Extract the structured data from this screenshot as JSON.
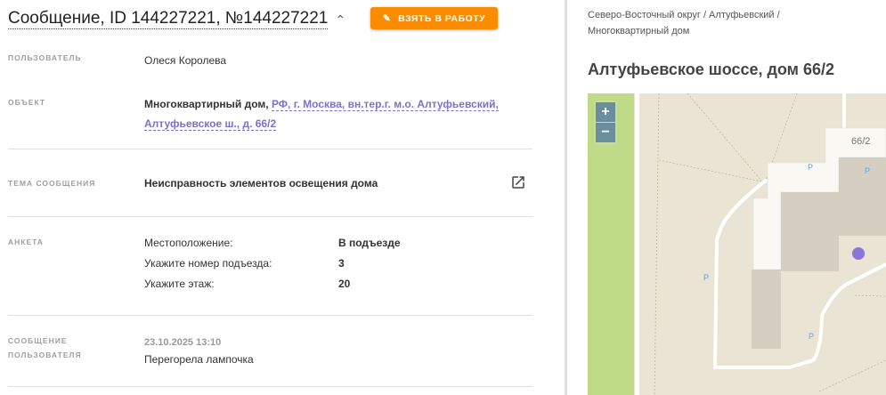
{
  "header": {
    "title": "Сообщение, ID 144227221, №144227221",
    "take_button": "ВЗЯТЬ В РАБОТУ"
  },
  "fields": {
    "user_label": "ПОЛЬЗОВАТЕЛЬ",
    "user_value": "Олеся Королева",
    "object_label": "ОБЪЕКТ",
    "object_type": "Многоквартирный дом,",
    "object_address_1": "РФ, г. Москва, вн.тер.г. м.о. Алтуфьевский,",
    "object_address_2": "Алтуфьевское ш., д. 66/2",
    "topic_label": "ТЕМА СООБЩЕНИЯ",
    "topic_value": "Неисправность элементов освещения дома",
    "survey_label": "АНКЕТА",
    "survey": [
      {
        "q": "Местоположение:",
        "a": "В подъезде"
      },
      {
        "q": "Укажите номер подъезда:",
        "a": "3"
      },
      {
        "q": "Укажите этаж:",
        "a": "20"
      }
    ],
    "message_label_1": "СООБЩЕНИЕ",
    "message_label_2": "ПОЛЬЗОВАТЕЛЯ",
    "message_date": "23.10.2025 13:10",
    "message_text": "Перегорела лампочка"
  },
  "right": {
    "breadcrumb_1": "Северо-Восточный округ / Алтуфьевский /",
    "breadcrumb_2": "Многоквартирный дом",
    "address": "Алтуфьевское шоссе, дом 66/2",
    "map": {
      "zoom_in": "+",
      "zoom_out": "−",
      "building_label": "66/2",
      "parking": "P",
      "marker_color": "#8a76d6"
    }
  },
  "colors": {
    "accent": "#fb8c00",
    "link": "#7e6fd0"
  }
}
